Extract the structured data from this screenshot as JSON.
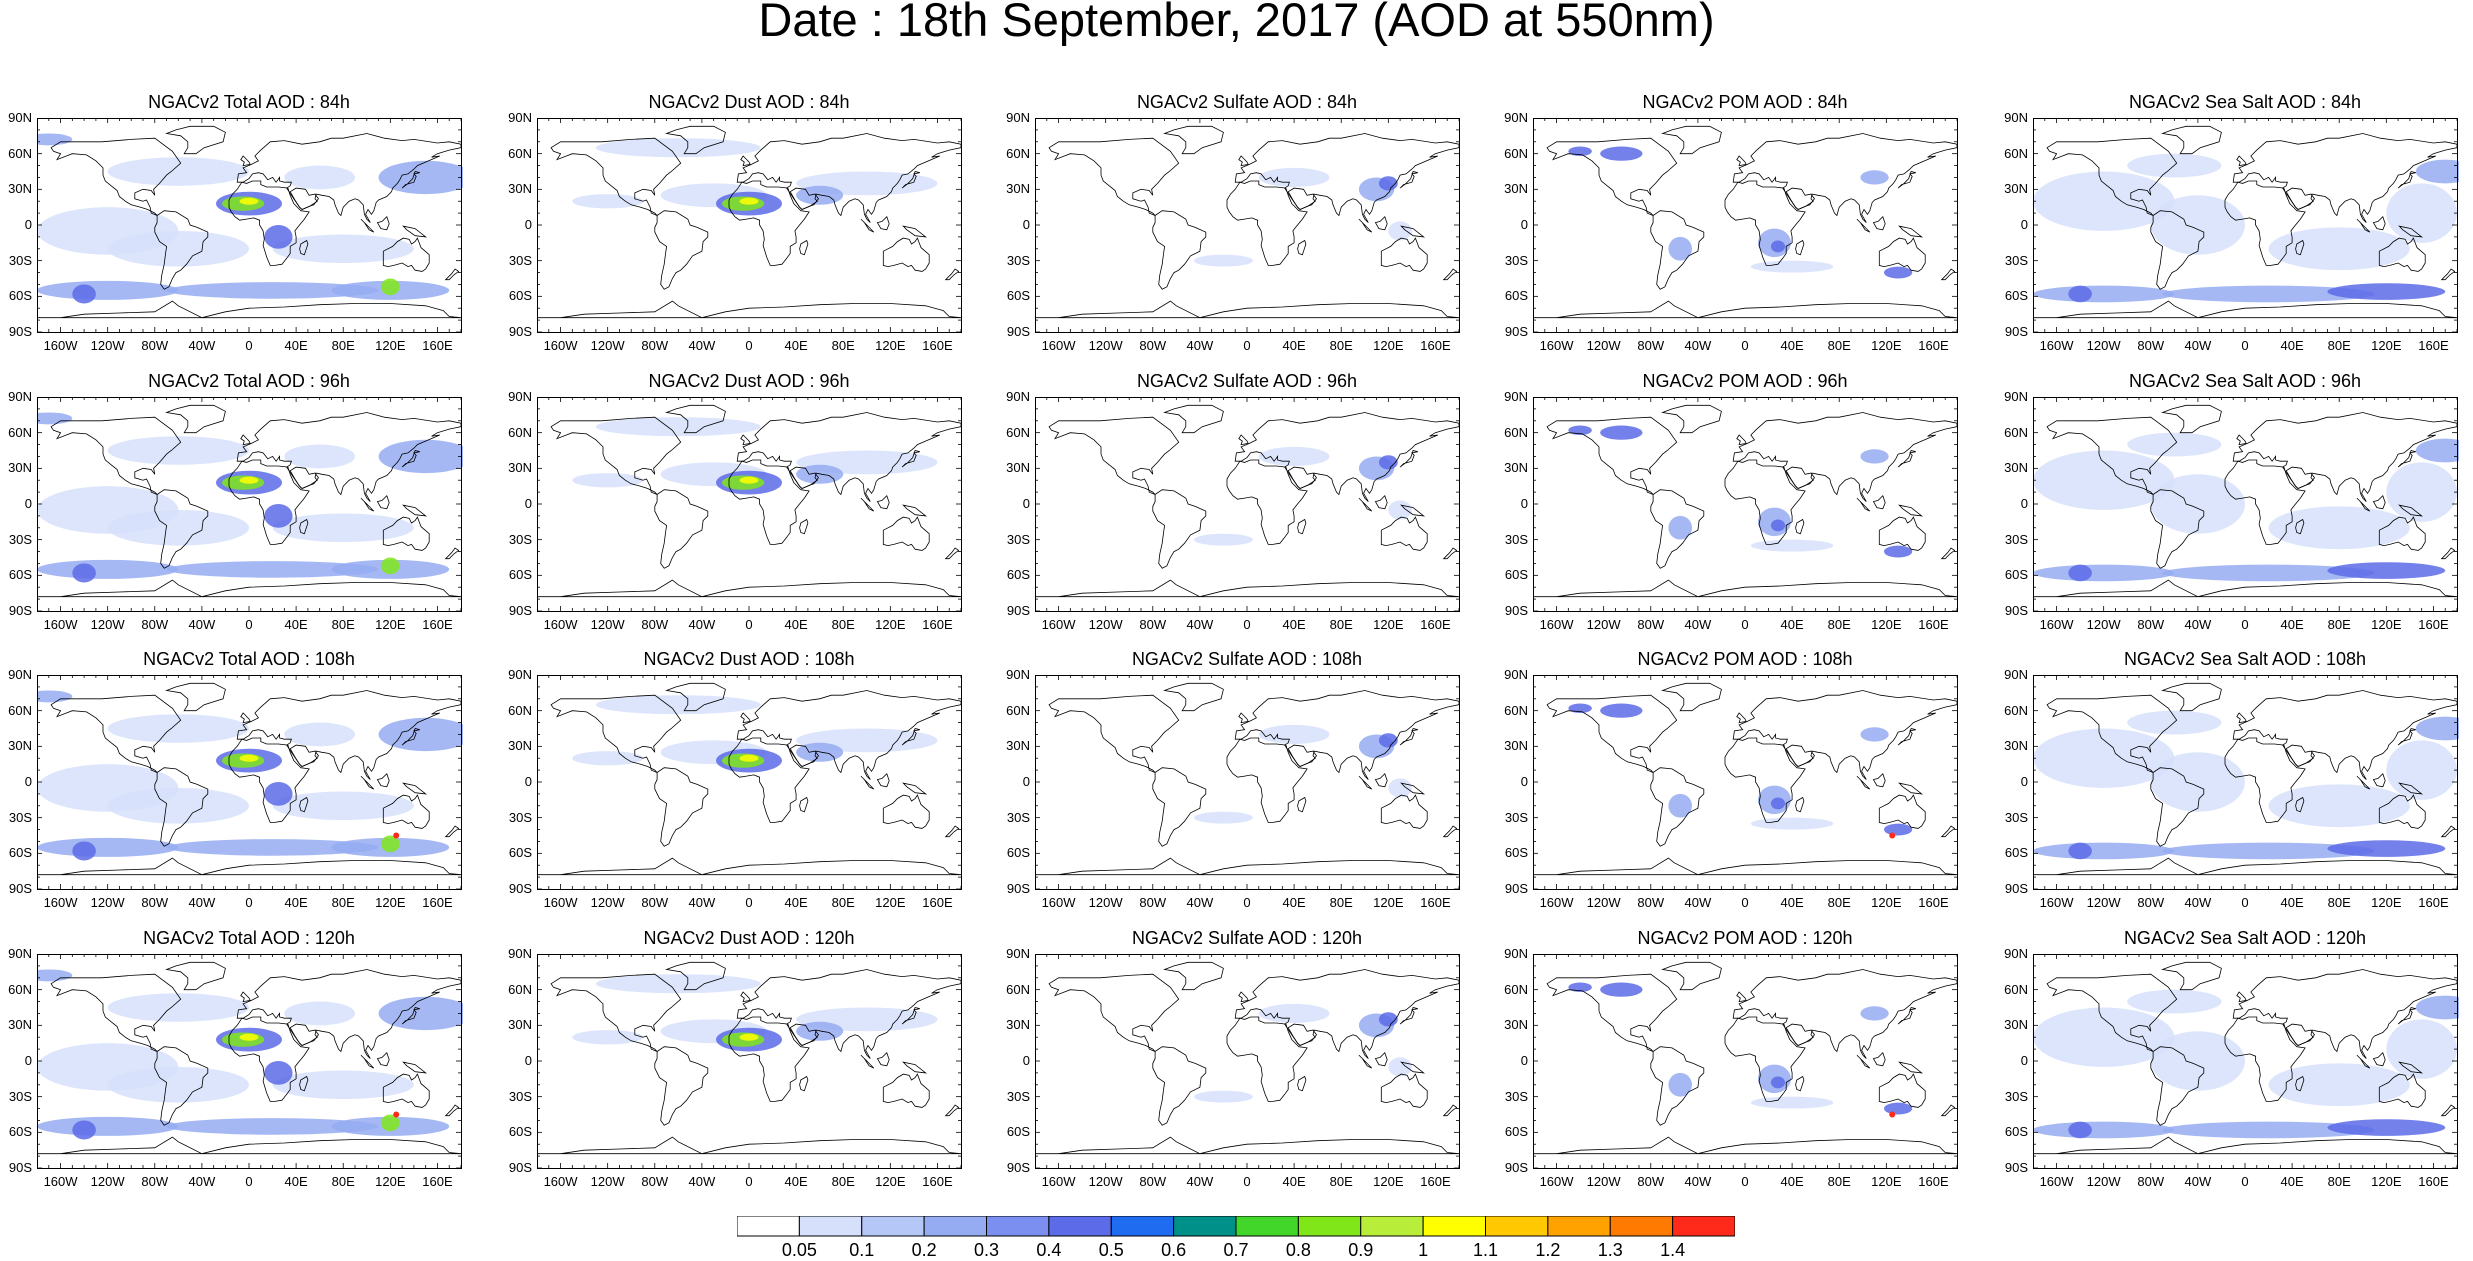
{
  "title": "Date : 18th September, 2017 (AOD at 550nm)",
  "lat_labels": [
    "90N",
    "60N",
    "30N",
    "0",
    "30S",
    "60S",
    "90S"
  ],
  "lon_labels": [
    "160W",
    "120W",
    "80W",
    "40W",
    "0",
    "40E",
    "80E",
    "120E",
    "160E"
  ],
  "species": [
    {
      "key": "total",
      "prefix": "NGACv2 Total AOD : "
    },
    {
      "key": "dust",
      "prefix": "NGACv2 Dust AOD : "
    },
    {
      "key": "sulfate",
      "prefix": "NGACv2 Sulfate AOD : "
    },
    {
      "key": "pom",
      "prefix": "NGACv2 POM AOD : "
    },
    {
      "key": "seasalt",
      "prefix": "NGACv2 Sea Salt AOD : "
    }
  ],
  "forecast_hours": [
    "84h",
    "96h",
    "108h",
    "120h"
  ],
  "panel_titles": [
    [
      "NGACv2 Total AOD : 84h",
      "NGACv2 Dust AOD : 84h",
      "NGACv2 Sulfate AOD : 84h",
      "NGACv2 POM AOD : 84h",
      "NGACv2 Sea Salt AOD : 84h"
    ],
    [
      "NGACv2 Total AOD : 96h",
      "NGACv2 Dust AOD : 96h",
      "NGACv2 Sulfate AOD : 96h",
      "NGACv2 POM AOD : 96h",
      "NGACv2 Sea Salt AOD : 96h"
    ],
    [
      "NGACv2 Total AOD : 108h",
      "NGACv2 Dust AOD : 108h",
      "NGACv2 Sulfate AOD : 108h",
      "NGACv2 POM AOD : 108h",
      "NGACv2 Sea Salt AOD : 108h"
    ],
    [
      "NGACv2 Total AOD : 120h",
      "NGACv2 Dust AOD : 120h",
      "NGACv2 Sulfate AOD : 120h",
      "NGACv2 POM AOD : 120h",
      "NGACv2 Sea Salt  AOD : 120h"
    ]
  ],
  "colorbar": {
    "labels": [
      "0.05",
      "0.1",
      "0.2",
      "0.3",
      "0.4",
      "0.5",
      "0.6",
      "0.7",
      "0.8",
      "0.9",
      "1",
      "1.1",
      "1.2",
      "1.3",
      "1.4"
    ],
    "colors": [
      "#ffffff",
      "#d6e0fa",
      "#b4c7f7",
      "#95acf2",
      "#7a8ff0",
      "#5c6be8",
      "#1f6cf0",
      "#00908a",
      "#42d62a",
      "#80e61a",
      "#b8ee3a",
      "#ffff00",
      "#ffc800",
      "#ffa200",
      "#ff7a00",
      "#ff2a1a"
    ]
  },
  "colors": {
    "ocean_low": "#d6e0fa",
    "aod_mid": "#95acf2",
    "aod_high": "#5c6be8",
    "dust_core": "#80e61a",
    "dust_peak": "#ffff00",
    "hotspot": "#ff2a1a",
    "coastline": "#000000"
  }
}
